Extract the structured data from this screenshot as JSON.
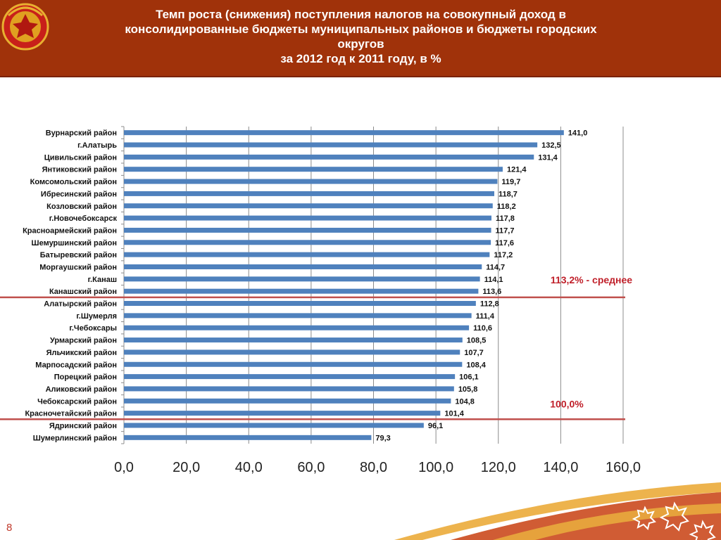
{
  "header": {
    "title_lines": [
      "Темп роста (снижения) поступления налогов на совокупный доход в",
      "консолидированные бюджеты муниципальных районов и бюджеты городских",
      "округов",
      "за 2012 год к 2011 году, в %"
    ]
  },
  "chart_data": {
    "type": "bar",
    "orientation": "horizontal",
    "categories": [
      "Вурнарский район",
      "г.Алатырь",
      "Цивильский район",
      "Янтиковский район",
      "Комсомольский район",
      "Ибресинский район",
      "Козловский район",
      "г.Новочебоксарск",
      "Красноармейский район",
      "Шемуршинский район",
      "Батыревский район",
      "Моргаушский район",
      "г.Канаш",
      "Канашский район",
      "Алатырский район",
      "г.Шумерля",
      "г.Чебоксары",
      "Урмарский район",
      "Яльчикский район",
      "Марпосадский район",
      "Порецкий район",
      "Аликовский район",
      "Чебоксарский район",
      "Красночетайский район",
      "Ядринский район",
      "Шумерлинский район"
    ],
    "values": [
      141.0,
      132.5,
      131.4,
      121.4,
      119.7,
      118.7,
      118.2,
      117.8,
      117.7,
      117.6,
      117.2,
      114.7,
      114.1,
      113.6,
      112.8,
      111.4,
      110.6,
      108.5,
      107.7,
      108.4,
      106.1,
      105.8,
      104.8,
      101.4,
      96.1,
      79.3
    ],
    "value_labels": [
      "141,0",
      "132,5",
      "131,4",
      "121,4",
      "119,7",
      "118,7",
      "118,2",
      "117,8",
      "117,7",
      "117,6",
      "117,2",
      "114,7",
      "114,1",
      "113,6",
      "112,8",
      "111,4",
      "110,6",
      "108,5",
      "107,7",
      "108,4",
      "106,1",
      "105,8",
      "104,8",
      "101,4",
      "96,1",
      "79,3"
    ],
    "xlim": [
      0,
      160
    ],
    "x_ticks": [
      "0,0",
      "20,0",
      "40,0",
      "60,0",
      "80,0",
      "100,0",
      "120,0",
      "140,0",
      "160,0"
    ],
    "grid": true,
    "bar_color": "#4f81bd",
    "reference_lines": [
      {
        "after_category_index": 13,
        "label": "113,2% - среднее",
        "color": "#c0504d"
      },
      {
        "after_category_index": 23,
        "label": "100,0%",
        "color": "#c0504d"
      }
    ]
  },
  "footer": {
    "page_number": "8"
  }
}
